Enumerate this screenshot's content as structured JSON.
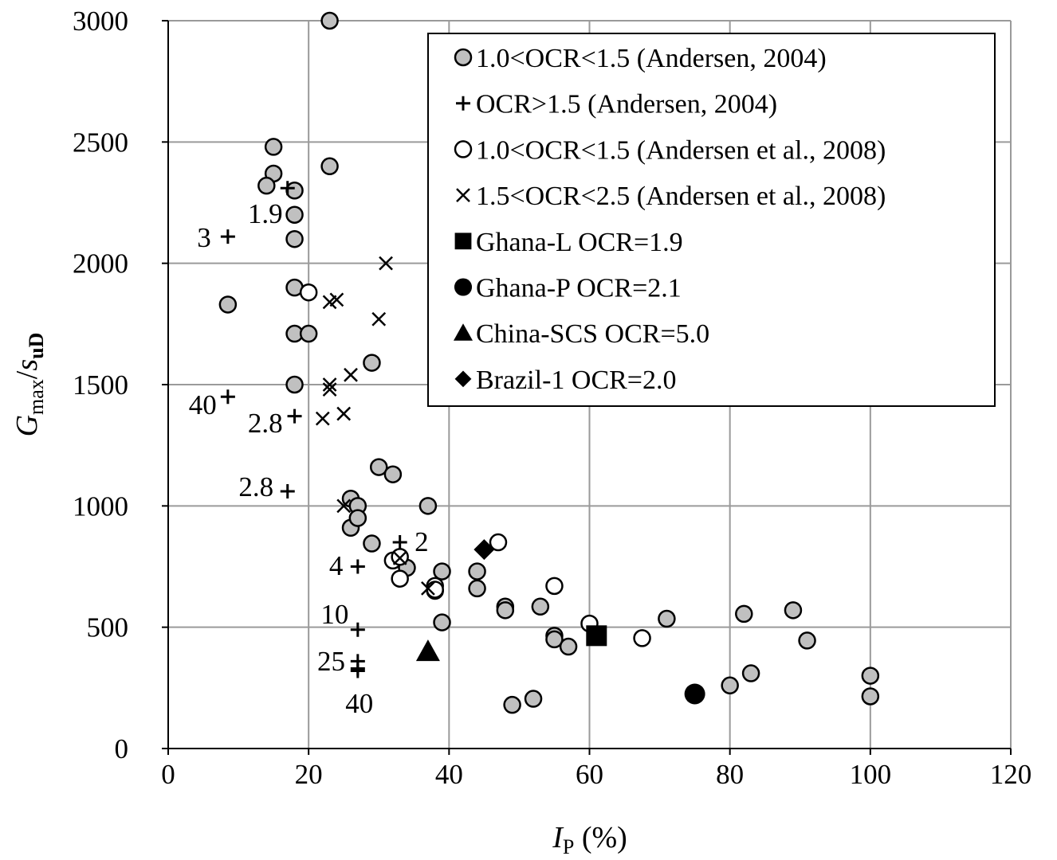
{
  "chart_data": {
    "type": "scatter",
    "title": "",
    "xlabel": {
      "main": "I",
      "sub": "P",
      "unit": " (%)"
    },
    "ylabel": {
      "main": "G",
      "sub1": "max",
      "slash": "/",
      "main2": "s",
      "sub2": "uD"
    },
    "xlim": [
      0,
      120
    ],
    "ylim": [
      0,
      3000
    ],
    "xticks": [
      "0",
      "20",
      "40",
      "60",
      "80",
      "100",
      "120"
    ],
    "yticks": [
      "0",
      "500",
      "1000",
      "1500",
      "2000",
      "2500",
      "3000"
    ],
    "grid": true,
    "legend_position": "top-right",
    "series": [
      {
        "name": "1.0<OCR<1.5 (Andersen, 2004)",
        "marker": "circle-gray",
        "color": "#c0c0c0",
        "points": [
          [
            23,
            3000
          ],
          [
            15,
            2480
          ],
          [
            15,
            2370
          ],
          [
            14,
            2320
          ],
          [
            18,
            2300
          ],
          [
            18,
            2200
          ],
          [
            18,
            2100
          ],
          [
            23,
            2400
          ],
          [
            8.5,
            1830
          ],
          [
            18,
            1900
          ],
          [
            18,
            1710
          ],
          [
            20,
            1710
          ],
          [
            18,
            1500
          ],
          [
            29,
            1590
          ],
          [
            30,
            1160
          ],
          [
            32,
            1130
          ],
          [
            26,
            1030
          ],
          [
            27,
            1000
          ],
          [
            37,
            1000
          ],
          [
            26,
            910
          ],
          [
            27,
            950
          ],
          [
            29,
            845
          ],
          [
            34,
            745
          ],
          [
            39,
            730
          ],
          [
            38,
            650
          ],
          [
            44,
            730
          ],
          [
            44,
            660
          ],
          [
            48,
            585
          ],
          [
            48,
            570
          ],
          [
            53,
            585
          ],
          [
            39,
            520
          ],
          [
            55,
            465
          ],
          [
            55,
            450
          ],
          [
            57,
            420
          ],
          [
            71,
            535
          ],
          [
            82,
            555
          ],
          [
            89,
            570
          ],
          [
            91,
            445
          ],
          [
            100,
            300
          ],
          [
            100,
            215
          ],
          [
            80,
            260
          ],
          [
            83,
            310
          ],
          [
            49,
            180
          ],
          [
            52,
            205
          ]
        ]
      },
      {
        "name": "OCR>1.5 (Andersen, 2004)",
        "marker": "plus",
        "color": "#000000",
        "points": [
          [
            17,
            2310
          ],
          [
            8.5,
            2110
          ],
          [
            8.5,
            1450
          ],
          [
            18,
            1370
          ],
          [
            17,
            1060
          ],
          [
            33,
            850
          ],
          [
            27,
            750
          ],
          [
            27,
            490
          ],
          [
            27,
            360
          ],
          [
            27,
            330
          ],
          [
            27,
            320
          ]
        ]
      },
      {
        "name": "1.0<OCR<1.5 (Andersen et al., 2008)",
        "marker": "circle-open",
        "color": "#ffffff",
        "points": [
          [
            20,
            1880
          ],
          [
            32,
            775
          ],
          [
            33,
            790
          ],
          [
            33,
            700
          ],
          [
            38,
            670
          ],
          [
            38,
            655
          ],
          [
            47,
            850
          ],
          [
            55,
            670
          ],
          [
            60,
            515
          ],
          [
            67.5,
            455
          ]
        ]
      },
      {
        "name": "1.5<OCR<2.5 (Andersen et al., 2008)",
        "marker": "x",
        "color": "#000000",
        "points": [
          [
            31,
            2000
          ],
          [
            23,
            1840
          ],
          [
            24,
            1850
          ],
          [
            30,
            1770
          ],
          [
            23,
            1500
          ],
          [
            23,
            1480
          ],
          [
            26,
            1540
          ],
          [
            22,
            1360
          ],
          [
            25,
            1380
          ],
          [
            25,
            1000
          ],
          [
            33,
            785
          ],
          [
            37,
            660
          ]
        ]
      },
      {
        "name": "Ghana-L OCR=1.9",
        "marker": "square",
        "color": "#000000",
        "points": [
          [
            61,
            465
          ]
        ]
      },
      {
        "name": "Ghana-P OCR=2.1",
        "marker": "circle-filled",
        "color": "#000000",
        "points": [
          [
            75,
            225
          ]
        ]
      },
      {
        "name": "China-SCS OCR=5.0",
        "marker": "triangle",
        "color": "#000000",
        "points": [
          [
            37,
            400
          ]
        ]
      },
      {
        "name": "Brazil-1 OCR=2.0",
        "marker": "diamond",
        "color": "#000000",
        "points": [
          [
            45,
            820
          ]
        ]
      }
    ],
    "annotations": [
      {
        "text": "1.9",
        "at": [
          16.3,
          2166
        ],
        "anchor": "end"
      },
      {
        "text": "3",
        "at": [
          6.1,
          2068
        ],
        "anchor": "end"
      },
      {
        "text": "40",
        "at": [
          6.9,
          1378
        ],
        "anchor": "end"
      },
      {
        "text": "2.8",
        "at": [
          16.3,
          1303
        ],
        "anchor": "end"
      },
      {
        "text": "2.8",
        "at": [
          15,
          1040
        ],
        "anchor": "end"
      },
      {
        "text": "2",
        "at": [
          35.1,
          814
        ],
        "anchor": "start"
      },
      {
        "text": "4",
        "at": [
          24.9,
          715
        ],
        "anchor": "end"
      },
      {
        "text": "10",
        "at": [
          25.7,
          515
        ],
        "anchor": "end"
      },
      {
        "text": "25",
        "at": [
          25.2,
          322
        ],
        "anchor": "end"
      },
      {
        "text": "40",
        "at": [
          29.2,
          148
        ],
        "anchor": "end"
      }
    ]
  }
}
